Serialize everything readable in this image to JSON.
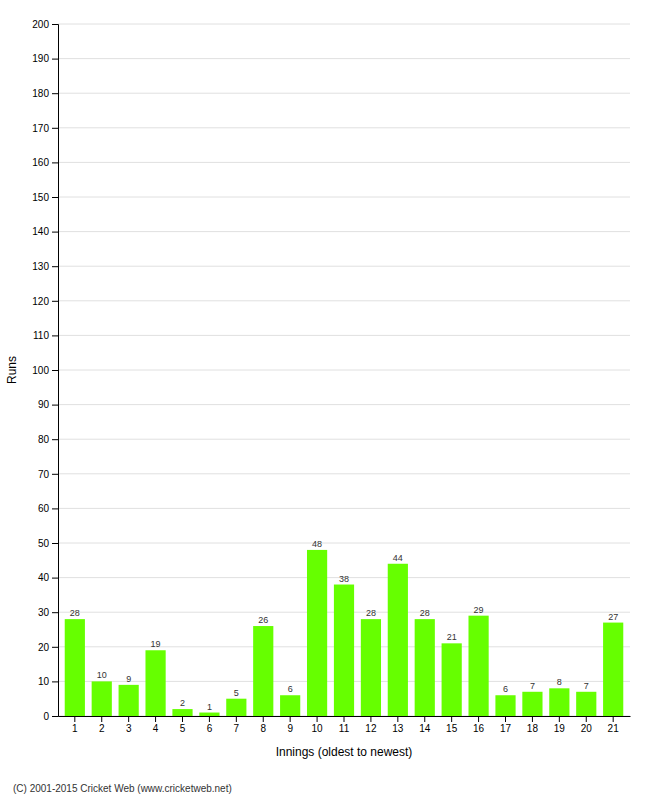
{
  "chart_data": {
    "type": "bar",
    "categories": [
      "1",
      "2",
      "3",
      "4",
      "5",
      "6",
      "7",
      "8",
      "9",
      "10",
      "11",
      "12",
      "13",
      "14",
      "15",
      "16",
      "17",
      "18",
      "19",
      "20",
      "21"
    ],
    "values": [
      28,
      10,
      9,
      19,
      2,
      1,
      5,
      26,
      6,
      48,
      38,
      28,
      44,
      28,
      21,
      29,
      6,
      7,
      8,
      7,
      27
    ],
    "color": "#66ff00",
    "xlabel": "Innings (oldest to newest)",
    "ylabel": "Runs",
    "ylim": [
      0,
      200
    ],
    "yticks": [
      0,
      10,
      20,
      30,
      40,
      50,
      60,
      70,
      80,
      90,
      100,
      110,
      120,
      130,
      140,
      150,
      160,
      170,
      180,
      190,
      200
    ],
    "grid": true,
    "data_labels": true,
    "annotations": [
      "(C) 2001-2015 Cricket Web (www.cricketweb.net)"
    ]
  }
}
